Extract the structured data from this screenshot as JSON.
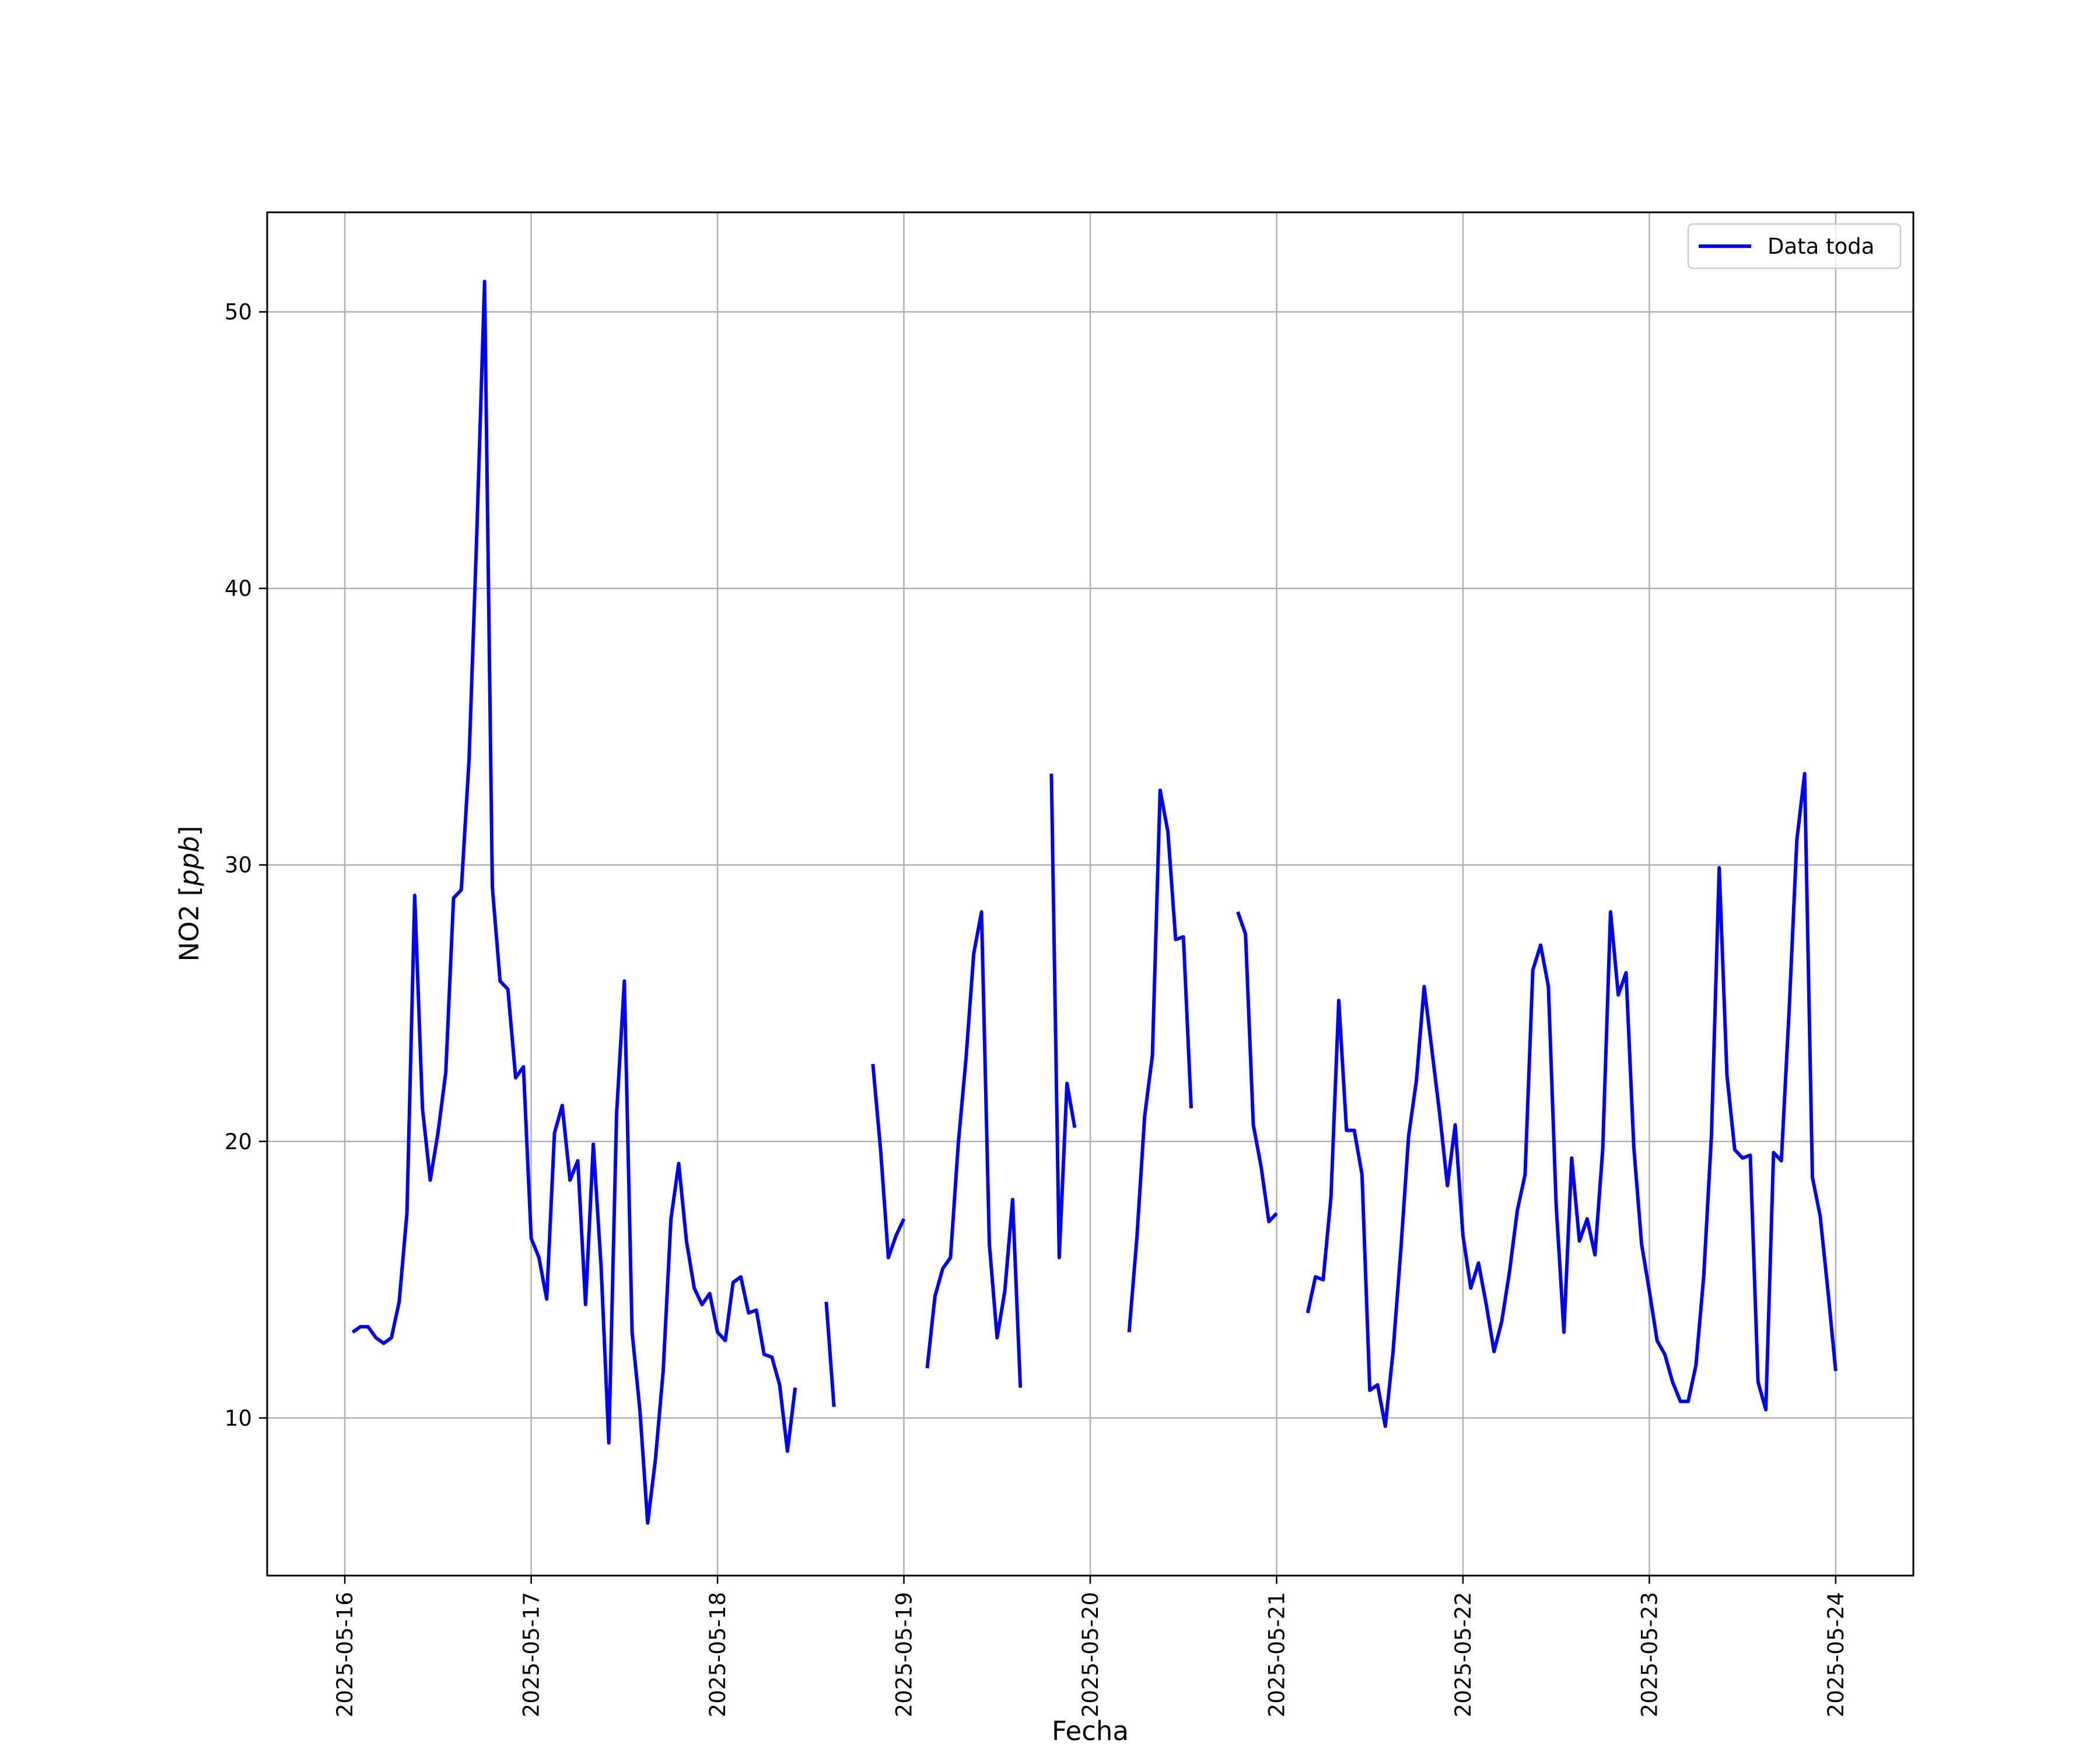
{
  "chart_data": {
    "type": "line",
    "title": "",
    "xlabel": "Fecha",
    "ylabel_main": "NO2 [",
    "ylabel_unit": "ppb",
    "ylabel_close": "]",
    "xlim": [
      "2025-05-15T14:00",
      "2025-05-24T10:00"
    ],
    "ylim": [
      4.3,
      53.6
    ],
    "x_ticks": [
      "2025-05-16",
      "2025-05-17",
      "2025-05-18",
      "2025-05-19",
      "2025-05-20",
      "2025-05-21",
      "2025-05-22",
      "2025-05-23",
      "2025-05-24"
    ],
    "y_ticks": [
      10,
      20,
      30,
      40,
      50
    ],
    "grid": true,
    "legend_position": "top-right",
    "colors": {
      "series": "#0000ff",
      "grid": "#b0b0b0"
    },
    "series": [
      {
        "name": "Data toda",
        "points": [
          [
            "2025-05-16T01:00",
            13.1
          ],
          [
            "2025-05-16T02:00",
            13.3
          ],
          [
            "2025-05-16T03:00",
            13.3
          ],
          [
            "2025-05-16T04:00",
            12.9
          ],
          [
            "2025-05-16T05:00",
            12.7
          ],
          [
            "2025-05-16T06:00",
            12.9
          ],
          [
            "2025-05-16T07:00",
            14.2
          ],
          [
            "2025-05-16T08:00",
            17.4
          ],
          [
            "2025-05-16T09:00",
            28.9
          ],
          [
            "2025-05-16T10:00",
            21.2
          ],
          [
            "2025-05-16T11:00",
            18.6
          ],
          [
            "2025-05-16T12:00",
            20.3
          ],
          [
            "2025-05-16T13:00",
            22.5
          ],
          [
            "2025-05-16T14:00",
            28.8
          ],
          [
            "2025-05-16T15:00",
            29.1
          ],
          [
            "2025-05-16T16:00",
            33.8
          ],
          [
            "2025-05-16T17:00",
            42.0
          ],
          [
            "2025-05-16T18:00",
            51.1
          ],
          [
            "2025-05-16T19:00",
            29.2
          ],
          [
            "2025-05-16T20:00",
            25.8
          ],
          [
            "2025-05-16T21:00",
            25.5
          ],
          [
            "2025-05-16T22:00",
            22.3
          ],
          [
            "2025-05-16T23:00",
            22.7
          ],
          [
            "2025-05-17T00:00",
            16.5
          ],
          [
            "2025-05-17T01:00",
            15.8
          ],
          [
            "2025-05-17T02:00",
            14.3
          ],
          [
            "2025-05-17T03:00",
            20.3
          ],
          [
            "2025-05-17T04:00",
            21.3
          ],
          [
            "2025-05-17T05:00",
            18.6
          ],
          [
            "2025-05-17T06:00",
            19.3
          ],
          [
            "2025-05-17T07:00",
            14.1
          ],
          [
            "2025-05-17T08:00",
            19.9
          ],
          [
            "2025-05-17T09:00",
            15.5
          ],
          [
            "2025-05-17T10:00",
            9.1
          ],
          [
            "2025-05-17T11:00",
            21.0
          ],
          [
            "2025-05-17T12:00",
            25.8
          ],
          [
            "2025-05-17T13:00",
            13.1
          ],
          [
            "2025-05-17T14:00",
            10.3
          ],
          [
            "2025-05-17T15:00",
            6.2
          ],
          [
            "2025-05-17T16:00",
            8.5
          ],
          [
            "2025-05-17T17:00",
            11.7
          ],
          [
            "2025-05-17T18:00",
            17.2
          ],
          [
            "2025-05-17T19:00",
            19.2
          ],
          [
            "2025-05-17T20:00",
            16.4
          ],
          [
            "2025-05-17T21:00",
            14.7
          ],
          [
            "2025-05-17T22:00",
            14.1
          ],
          [
            "2025-05-17T23:00",
            14.5
          ],
          [
            "2025-05-18T00:00",
            13.1
          ],
          [
            "2025-05-18T01:00",
            12.8
          ],
          [
            "2025-05-18T02:00",
            14.9
          ],
          [
            "2025-05-18T03:00",
            15.1
          ],
          [
            "2025-05-18T04:00",
            13.8
          ],
          [
            "2025-05-18T05:00",
            13.9
          ],
          [
            "2025-05-18T06:00",
            12.3
          ],
          [
            "2025-05-18T07:00",
            12.2
          ],
          [
            "2025-05-18T08:00",
            11.2
          ],
          [
            "2025-05-18T09:00",
            8.8
          ],
          [
            "2025-05-18T10:00",
            11.1
          ],
          null,
          [
            "2025-05-18T14:00",
            14.2
          ],
          [
            "2025-05-18T15:00",
            10.4
          ],
          null,
          [
            "2025-05-18T20:00",
            22.8
          ],
          [
            "2025-05-18T21:00",
            19.7
          ],
          [
            "2025-05-18T22:00",
            15.8
          ],
          [
            "2025-05-18T23:00",
            16.6
          ],
          [
            "2025-05-19T00:00",
            17.2
          ],
          null,
          [
            "2025-05-19T03:00",
            11.8
          ],
          [
            "2025-05-19T04:00",
            14.4
          ],
          [
            "2025-05-19T05:00",
            15.4
          ],
          [
            "2025-05-19T06:00",
            15.8
          ],
          [
            "2025-05-19T07:00",
            19.9
          ],
          [
            "2025-05-19T08:00",
            23.0
          ],
          [
            "2025-05-19T09:00",
            26.8
          ],
          [
            "2025-05-19T10:00",
            28.3
          ],
          [
            "2025-05-19T11:00",
            16.3
          ],
          [
            "2025-05-19T12:00",
            12.9
          ],
          [
            "2025-05-19T13:00",
            14.6
          ],
          [
            "2025-05-19T14:00",
            17.9
          ],
          [
            "2025-05-19T15:00",
            11.1
          ],
          null,
          [
            "2025-05-19T19:00",
            33.3
          ],
          [
            "2025-05-19T20:00",
            15.8
          ],
          [
            "2025-05-19T21:00",
            22.1
          ],
          [
            "2025-05-19T22:00",
            20.5
          ],
          null,
          [
            "2025-05-20T05:00",
            13.1
          ],
          [
            "2025-05-20T06:00",
            16.5
          ],
          [
            "2025-05-20T07:00",
            20.9
          ],
          [
            "2025-05-20T08:00",
            23.1
          ],
          [
            "2025-05-20T09:00",
            32.7
          ],
          [
            "2025-05-20T10:00",
            31.2
          ],
          [
            "2025-05-20T11:00",
            27.3
          ],
          [
            "2025-05-20T12:00",
            27.4
          ],
          [
            "2025-05-20T13:00",
            21.2
          ],
          null,
          [
            "2025-05-20T19:00",
            28.3
          ],
          [
            "2025-05-20T20:00",
            27.5
          ],
          [
            "2025-05-20T21:00",
            20.6
          ],
          [
            "2025-05-20T22:00",
            19.1
          ],
          [
            "2025-05-20T23:00",
            17.1
          ],
          [
            "2025-05-21T00:00",
            17.4
          ],
          null,
          [
            "2025-05-21T04:00",
            13.8
          ],
          [
            "2025-05-21T05:00",
            15.1
          ],
          [
            "2025-05-21T06:00",
            15.0
          ],
          [
            "2025-05-21T07:00",
            18.0
          ],
          [
            "2025-05-21T08:00",
            25.1
          ],
          [
            "2025-05-21T09:00",
            20.4
          ],
          [
            "2025-05-21T10:00",
            20.4
          ],
          [
            "2025-05-21T11:00",
            18.8
          ],
          [
            "2025-05-21T12:00",
            11.0
          ],
          [
            "2025-05-21T13:00",
            11.2
          ],
          [
            "2025-05-21T14:00",
            9.7
          ],
          [
            "2025-05-21T15:00",
            12.4
          ],
          [
            "2025-05-21T16:00",
            16.1
          ],
          [
            "2025-05-21T17:00",
            20.2
          ],
          [
            "2025-05-21T18:00",
            22.2
          ],
          [
            "2025-05-21T19:00",
            25.6
          ],
          [
            "2025-05-21T20:00",
            23.3
          ],
          [
            "2025-05-21T21:00",
            21.0
          ],
          [
            "2025-05-21T22:00",
            18.4
          ],
          [
            "2025-05-21T23:00",
            20.6
          ],
          [
            "2025-05-22T00:00",
            16.6
          ],
          [
            "2025-05-22T01:00",
            14.7
          ],
          [
            "2025-05-22T02:00",
            15.6
          ],
          [
            "2025-05-22T03:00",
            14.1
          ],
          [
            "2025-05-22T04:00",
            12.4
          ],
          [
            "2025-05-22T05:00",
            13.5
          ],
          [
            "2025-05-22T06:00",
            15.3
          ],
          [
            "2025-05-22T07:00",
            17.5
          ],
          [
            "2025-05-22T08:00",
            18.8
          ],
          [
            "2025-05-22T09:00",
            26.2
          ],
          [
            "2025-05-22T10:00",
            27.1
          ],
          [
            "2025-05-22T11:00",
            25.6
          ],
          [
            "2025-05-22T12:00",
            17.7
          ],
          [
            "2025-05-22T13:00",
            13.1
          ],
          [
            "2025-05-22T14:00",
            19.4
          ],
          [
            "2025-05-22T15:00",
            16.4
          ],
          [
            "2025-05-22T16:00",
            17.2
          ],
          [
            "2025-05-22T17:00",
            15.9
          ],
          [
            "2025-05-22T18:00",
            19.7
          ],
          [
            "2025-05-22T19:00",
            28.3
          ],
          [
            "2025-05-22T20:00",
            25.3
          ],
          [
            "2025-05-22T21:00",
            26.1
          ],
          [
            "2025-05-22T22:00",
            19.8
          ],
          [
            "2025-05-22T23:00",
            16.3
          ],
          [
            "2025-05-23T00:00",
            14.6
          ],
          [
            "2025-05-23T01:00",
            12.8
          ],
          [
            "2025-05-23T02:00",
            12.3
          ],
          [
            "2025-05-23T03:00",
            11.3
          ],
          [
            "2025-05-23T04:00",
            10.6
          ],
          [
            "2025-05-23T05:00",
            10.6
          ],
          [
            "2025-05-23T06:00",
            11.9
          ],
          [
            "2025-05-23T07:00",
            15.1
          ],
          [
            "2025-05-23T08:00",
            20.2
          ],
          [
            "2025-05-23T09:00",
            29.9
          ],
          [
            "2025-05-23T10:00",
            22.4
          ],
          [
            "2025-05-23T11:00",
            19.7
          ],
          [
            "2025-05-23T12:00",
            19.4
          ],
          [
            "2025-05-23T13:00",
            19.5
          ],
          [
            "2025-05-23T14:00",
            11.3
          ],
          [
            "2025-05-23T15:00",
            10.3
          ],
          [
            "2025-05-23T16:00",
            19.6
          ],
          [
            "2025-05-23T17:00",
            19.3
          ],
          [
            "2025-05-23T18:00",
            24.7
          ],
          [
            "2025-05-23T19:00",
            30.9
          ],
          [
            "2025-05-23T20:00",
            33.3
          ],
          [
            "2025-05-23T21:00",
            18.7
          ],
          [
            "2025-05-23T22:00",
            17.3
          ],
          [
            "2025-05-23T23:00",
            14.6
          ],
          [
            "2025-05-24T00:00",
            11.7
          ]
        ]
      }
    ]
  }
}
